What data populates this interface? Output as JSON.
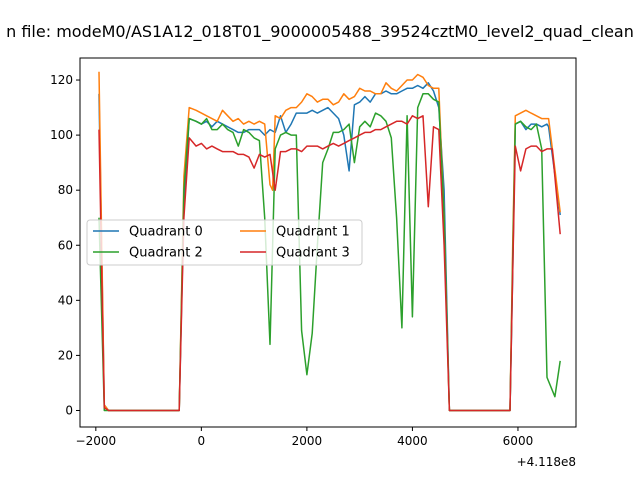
{
  "figure": {
    "title": "n file: modeM0/AS1A12_018T01_9000005488_39524cztM0_level2_quad_clean"
  },
  "chart_data": {
    "type": "line",
    "title": "n file: modeM0/AS1A12_018T01_9000005488_39524cztM0_level2_quad_clean",
    "xlabel": "",
    "ylabel": "",
    "x_offset_label": "+4.118e8",
    "xlim": [
      -2300,
      7100
    ],
    "ylim": [
      -6,
      128
    ],
    "xticks": [
      -2000,
      0,
      2000,
      4000,
      6000
    ],
    "yticks": [
      0,
      20,
      40,
      60,
      80,
      100,
      120
    ],
    "grid": false,
    "legend": {
      "placement": "center-left",
      "ncol": 2
    },
    "series": [
      {
        "name": "Quadrant 0",
        "color": "#1f77b4",
        "points": [
          [
            -1940,
            115
          ],
          [
            -1840,
            2
          ],
          [
            -1760,
            0
          ],
          [
            -1500,
            0
          ],
          [
            -1000,
            0
          ],
          [
            -500,
            0
          ],
          [
            -420,
            0
          ],
          [
            -330,
            75
          ],
          [
            -230,
            106
          ],
          [
            -100,
            105
          ],
          [
            0,
            104
          ],
          [
            100,
            105
          ],
          [
            200,
            103
          ],
          [
            300,
            105
          ],
          [
            400,
            104
          ],
          [
            500,
            103
          ],
          [
            600,
            102
          ],
          [
            700,
            101
          ],
          [
            800,
            101
          ],
          [
            900,
            102
          ],
          [
            1000,
            102
          ],
          [
            1100,
            102
          ],
          [
            1200,
            100
          ],
          [
            1300,
            102
          ],
          [
            1400,
            101
          ],
          [
            1500,
            107
          ],
          [
            1600,
            101
          ],
          [
            1700,
            104
          ],
          [
            1800,
            108
          ],
          [
            1900,
            108
          ],
          [
            2000,
            108
          ],
          [
            2100,
            109
          ],
          [
            2200,
            108
          ],
          [
            2300,
            109
          ],
          [
            2400,
            110
          ],
          [
            2500,
            108
          ],
          [
            2600,
            106
          ],
          [
            2700,
            100
          ],
          [
            2800,
            87
          ],
          [
            2900,
            111
          ],
          [
            3000,
            112
          ],
          [
            3100,
            114
          ],
          [
            3200,
            112
          ],
          [
            3300,
            115
          ],
          [
            3400,
            115
          ],
          [
            3500,
            116
          ],
          [
            3600,
            115
          ],
          [
            3700,
            115
          ],
          [
            3800,
            116
          ],
          [
            3900,
            117
          ],
          [
            4000,
            117
          ],
          [
            4100,
            118
          ],
          [
            4200,
            117
          ],
          [
            4300,
            119
          ],
          [
            4400,
            116
          ],
          [
            4500,
            110
          ],
          [
            4600,
            80
          ],
          [
            4700,
            0
          ],
          [
            5000,
            0
          ],
          [
            5500,
            0
          ],
          [
            5850,
            0
          ],
          [
            5900,
            50
          ],
          [
            5950,
            104
          ],
          [
            6050,
            105
          ],
          [
            6150,
            102
          ],
          [
            6250,
            104
          ],
          [
            6350,
            104
          ],
          [
            6450,
            103
          ],
          [
            6550,
            104
          ],
          [
            6580,
            103
          ],
          [
            6800,
            71
          ]
        ]
      },
      {
        "name": "Quadrant 1",
        "color": "#ff7f0e",
        "points": [
          [
            -1940,
            123
          ],
          [
            -1840,
            2
          ],
          [
            -1760,
            0
          ],
          [
            -1500,
            0
          ],
          [
            -1000,
            0
          ],
          [
            -500,
            0
          ],
          [
            -420,
            0
          ],
          [
            -330,
            85
          ],
          [
            -230,
            110
          ],
          [
            -100,
            109
          ],
          [
            0,
            108
          ],
          [
            100,
            107
          ],
          [
            200,
            106
          ],
          [
            300,
            105
          ],
          [
            400,
            109
          ],
          [
            500,
            107
          ],
          [
            600,
            105
          ],
          [
            700,
            106
          ],
          [
            800,
            104
          ],
          [
            900,
            105
          ],
          [
            1000,
            104
          ],
          [
            1100,
            105
          ],
          [
            1200,
            104
          ],
          [
            1300,
            82
          ],
          [
            1350,
            80
          ],
          [
            1400,
            107
          ],
          [
            1500,
            106
          ],
          [
            1600,
            109
          ],
          [
            1700,
            110
          ],
          [
            1800,
            110
          ],
          [
            1900,
            112
          ],
          [
            2000,
            115
          ],
          [
            2100,
            114
          ],
          [
            2200,
            112
          ],
          [
            2300,
            113
          ],
          [
            2400,
            113
          ],
          [
            2500,
            111
          ],
          [
            2600,
            112
          ],
          [
            2700,
            115
          ],
          [
            2800,
            113
          ],
          [
            2900,
            114
          ],
          [
            3000,
            117
          ],
          [
            3100,
            116
          ],
          [
            3200,
            116
          ],
          [
            3300,
            115
          ],
          [
            3400,
            115
          ],
          [
            3500,
            119
          ],
          [
            3600,
            117
          ],
          [
            3700,
            116
          ],
          [
            3800,
            118
          ],
          [
            3900,
            120
          ],
          [
            4000,
            120
          ],
          [
            4100,
            122
          ],
          [
            4200,
            121
          ],
          [
            4300,
            118
          ],
          [
            4400,
            117
          ],
          [
            4500,
            117
          ],
          [
            4600,
            70
          ],
          [
            4700,
            0
          ],
          [
            5000,
            0
          ],
          [
            5500,
            0
          ],
          [
            5850,
            0
          ],
          [
            5900,
            60
          ],
          [
            5950,
            107
          ],
          [
            6050,
            108
          ],
          [
            6150,
            109
          ],
          [
            6250,
            108
          ],
          [
            6350,
            107
          ],
          [
            6450,
            106
          ],
          [
            6580,
            106
          ],
          [
            6800,
            72
          ]
        ]
      },
      {
        "name": "Quadrant 2",
        "color": "#2ca02c",
        "points": [
          [
            -1940,
            70
          ],
          [
            -1840,
            0
          ],
          [
            -1760,
            0
          ],
          [
            -1500,
            0
          ],
          [
            -1000,
            0
          ],
          [
            -500,
            0
          ],
          [
            -420,
            0
          ],
          [
            -330,
            80
          ],
          [
            -230,
            106
          ],
          [
            -100,
            105
          ],
          [
            0,
            104
          ],
          [
            100,
            106
          ],
          [
            200,
            102
          ],
          [
            300,
            102
          ],
          [
            400,
            104
          ],
          [
            500,
            102
          ],
          [
            600,
            101
          ],
          [
            700,
            96
          ],
          [
            800,
            102
          ],
          [
            900,
            101
          ],
          [
            1000,
            99
          ],
          [
            1100,
            98
          ],
          [
            1200,
            70
          ],
          [
            1300,
            24
          ],
          [
            1400,
            95
          ],
          [
            1500,
            100
          ],
          [
            1600,
            101
          ],
          [
            1700,
            100
          ],
          [
            1800,
            100
          ],
          [
            1900,
            29
          ],
          [
            2000,
            13
          ],
          [
            2100,
            28
          ],
          [
            2200,
            60
          ],
          [
            2300,
            90
          ],
          [
            2400,
            95
          ],
          [
            2500,
            101
          ],
          [
            2600,
            101
          ],
          [
            2700,
            102
          ],
          [
            2800,
            104
          ],
          [
            2900,
            90
          ],
          [
            3000,
            103
          ],
          [
            3100,
            105
          ],
          [
            3200,
            103
          ],
          [
            3300,
            108
          ],
          [
            3400,
            107
          ],
          [
            3500,
            105
          ],
          [
            3600,
            99
          ],
          [
            3700,
            70
          ],
          [
            3800,
            30
          ],
          [
            3900,
            107
          ],
          [
            4000,
            34
          ],
          [
            4100,
            110
          ],
          [
            4200,
            115
          ],
          [
            4300,
            115
          ],
          [
            4400,
            113
          ],
          [
            4500,
            112
          ],
          [
            4600,
            70
          ],
          [
            4700,
            0
          ],
          [
            5000,
            0
          ],
          [
            5500,
            0
          ],
          [
            5850,
            0
          ],
          [
            5900,
            55
          ],
          [
            5950,
            104
          ],
          [
            6050,
            105
          ],
          [
            6150,
            103
          ],
          [
            6250,
            102
          ],
          [
            6350,
            104
          ],
          [
            6450,
            95
          ],
          [
            6550,
            12
          ],
          [
            6700,
            5
          ],
          [
            6800,
            18
          ]
        ]
      },
      {
        "name": "Quadrant 3",
        "color": "#d62728",
        "points": [
          [
            -1940,
            102
          ],
          [
            -1840,
            1
          ],
          [
            -1760,
            0
          ],
          [
            -1500,
            0
          ],
          [
            -1000,
            0
          ],
          [
            -500,
            0
          ],
          [
            -420,
            0
          ],
          [
            -330,
            70
          ],
          [
            -230,
            99
          ],
          [
            -100,
            96
          ],
          [
            0,
            97
          ],
          [
            100,
            95
          ],
          [
            200,
            96
          ],
          [
            300,
            95
          ],
          [
            400,
            94
          ],
          [
            500,
            94
          ],
          [
            600,
            94
          ],
          [
            700,
            93
          ],
          [
            800,
            93
          ],
          [
            900,
            92
          ],
          [
            1000,
            88
          ],
          [
            1100,
            93
          ],
          [
            1200,
            92
          ],
          [
            1300,
            93
          ],
          [
            1400,
            80
          ],
          [
            1500,
            94
          ],
          [
            1600,
            94
          ],
          [
            1700,
            95
          ],
          [
            1800,
            95
          ],
          [
            1900,
            94
          ],
          [
            2000,
            96
          ],
          [
            2100,
            96
          ],
          [
            2200,
            96
          ],
          [
            2300,
            95
          ],
          [
            2400,
            96
          ],
          [
            2500,
            97
          ],
          [
            2600,
            96
          ],
          [
            2700,
            97
          ],
          [
            2800,
            98
          ],
          [
            2900,
            99
          ],
          [
            3000,
            100
          ],
          [
            3100,
            101
          ],
          [
            3200,
            101
          ],
          [
            3300,
            102
          ],
          [
            3400,
            102
          ],
          [
            3500,
            103
          ],
          [
            3600,
            104
          ],
          [
            3700,
            105
          ],
          [
            3800,
            105
          ],
          [
            3900,
            104
          ],
          [
            4000,
            107
          ],
          [
            4100,
            106
          ],
          [
            4200,
            107
          ],
          [
            4300,
            74
          ],
          [
            4400,
            103
          ],
          [
            4500,
            102
          ],
          [
            4600,
            60
          ],
          [
            4700,
            0
          ],
          [
            5000,
            0
          ],
          [
            5500,
            0
          ],
          [
            5850,
            0
          ],
          [
            5900,
            50
          ],
          [
            5950,
            96
          ],
          [
            6050,
            87
          ],
          [
            6150,
            95
          ],
          [
            6250,
            96
          ],
          [
            6350,
            96
          ],
          [
            6450,
            94
          ],
          [
            6550,
            95
          ],
          [
            6650,
            95
          ],
          [
            6800,
            64
          ]
        ]
      }
    ]
  }
}
